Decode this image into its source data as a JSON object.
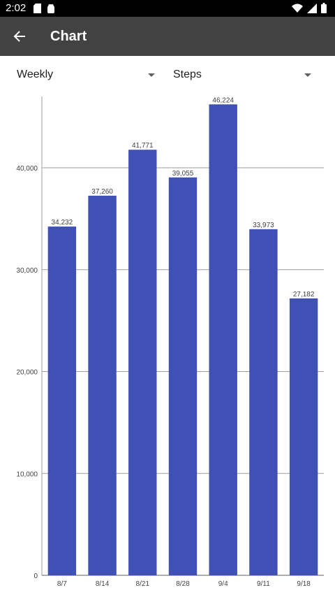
{
  "status_bar": {
    "time": "2:02",
    "left_icons": [
      "sd-card-icon",
      "android-icon"
    ],
    "right_icons": [
      "wifi-icon",
      "signal-icon",
      "battery-icon"
    ]
  },
  "app_bar": {
    "back_icon": "arrow-back-icon",
    "title": "Chart"
  },
  "filters": {
    "period": {
      "selected": "Weekly"
    },
    "metric": {
      "selected": "Steps"
    }
  },
  "colors": {
    "bar": "#3f51b5",
    "app_bar": "#424242",
    "status_bar": "#000000"
  },
  "chart_data": {
    "type": "bar",
    "categories": [
      "8/7",
      "8/14",
      "8/21",
      "8/28",
      "9/4",
      "9/11",
      "9/18"
    ],
    "values": [
      34232,
      37260,
      41771,
      39055,
      46224,
      33973,
      27182
    ],
    "value_labels": [
      "34,232",
      "37,260",
      "41,771",
      "39,055",
      "46,224",
      "33,973",
      "27,182"
    ],
    "ylim": [
      0,
      47000
    ],
    "yticks": [
      0,
      10000,
      20000,
      30000,
      40000
    ],
    "ytick_labels": [
      "0",
      "10,000",
      "20,000",
      "30,000",
      "40,000"
    ],
    "grid": true,
    "legend": false
  }
}
